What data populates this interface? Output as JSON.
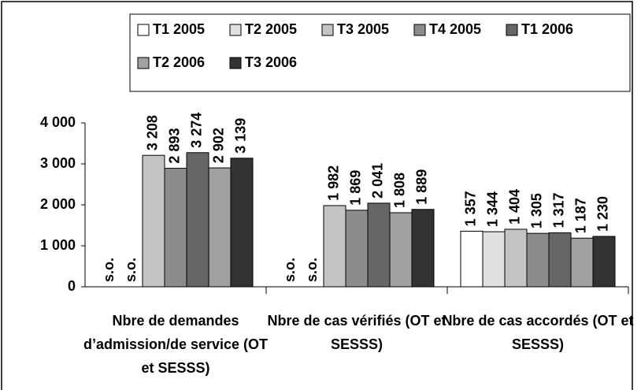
{
  "chart_data": {
    "type": "bar",
    "categories": [
      "Nbre de demandes d’admission/de service (OT et SESSS)",
      "Nbre de cas vérifiés (OT et SESSS)",
      "Nbre de cas accordés (OT et SESSS)"
    ],
    "series": [
      {
        "name": "T1 2005",
        "color": "#ffffff",
        "values": [
          null,
          null,
          1357
        ],
        "value_labels": [
          "s.o.",
          "s.o.",
          "1 357"
        ]
      },
      {
        "name": "T2 2005",
        "color": "#e0e0e0",
        "values": [
          null,
          null,
          1344
        ],
        "value_labels": [
          "s.o.",
          "s.o.",
          "1 344"
        ]
      },
      {
        "name": "T3 2005",
        "color": "#c4c4c4",
        "values": [
          3208,
          1982,
          1404
        ],
        "value_labels": [
          "3 208",
          "1 982",
          "1 404"
        ]
      },
      {
        "name": "T4 2005",
        "color": "#8c8c8c",
        "values": [
          2893,
          1869,
          1305
        ],
        "value_labels": [
          "2 893",
          "1 869",
          "1 305"
        ]
      },
      {
        "name": "T1 2006",
        "color": "#666666",
        "values": [
          3274,
          2041,
          1317
        ],
        "value_labels": [
          "3 274",
          "2 041",
          "1 317"
        ]
      },
      {
        "name": "T2 2006",
        "color": "#a0a0a0",
        "values": [
          2902,
          1808,
          1187
        ],
        "value_labels": [
          "2 902",
          "1 808",
          "1 187"
        ]
      },
      {
        "name": "T3 2006",
        "color": "#333333",
        "values": [
          3139,
          1889,
          1230
        ],
        "value_labels": [
          "3 139",
          "1 889",
          "1 230"
        ]
      }
    ],
    "ylim": [
      0,
      4000
    ],
    "yticks": [
      0,
      {
        "value": 1000,
        "label": "1 000"
      },
      {
        "value": 2000,
        "label": "2 000"
      },
      {
        "value": 3000,
        "label": "3 000"
      },
      {
        "value": 4000,
        "label": "4 000"
      }
    ]
  }
}
